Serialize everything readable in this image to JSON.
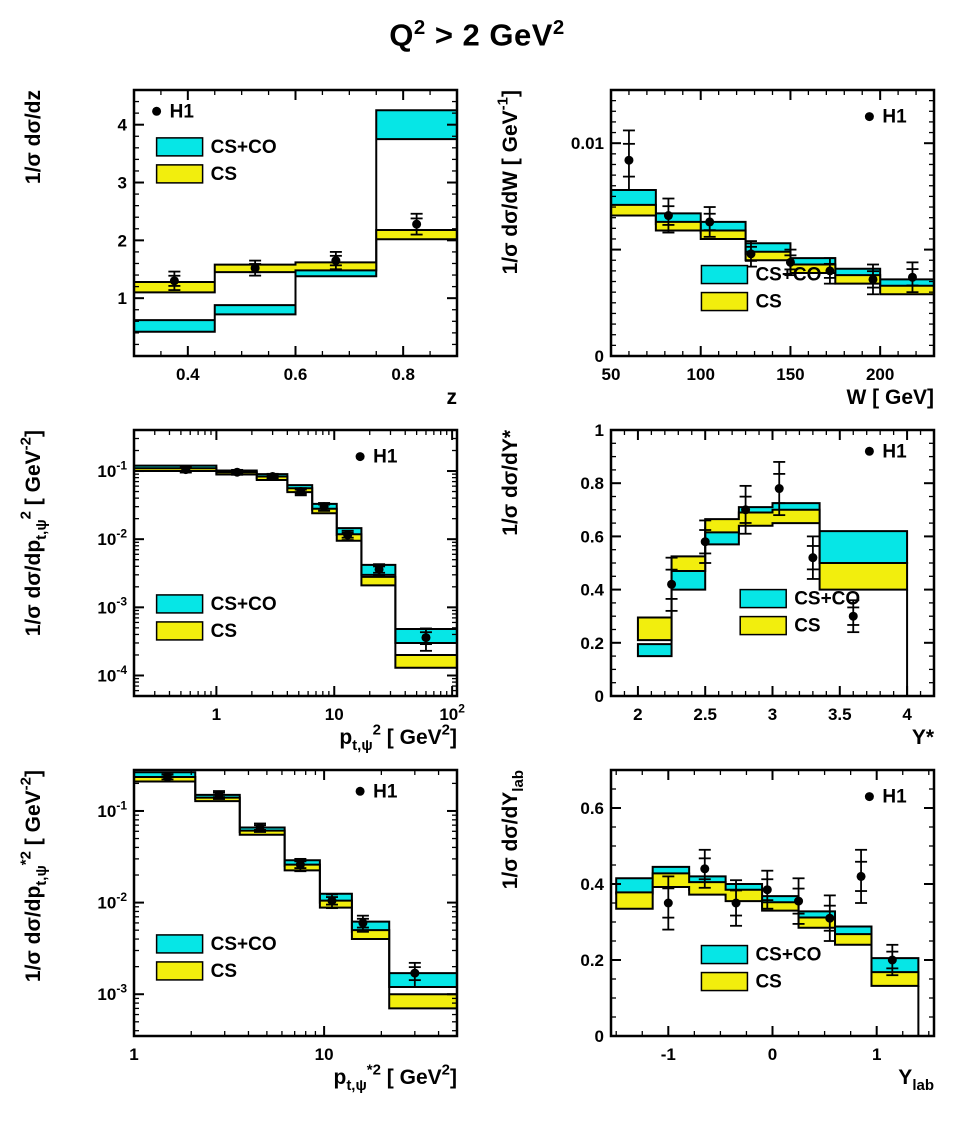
{
  "figure_title": "Q^{2} > 2 GeV^{2}",
  "colors": {
    "cs_co": "#06e6e6",
    "cs": "#f2ee0d",
    "ink": "#000000",
    "background": "#ffffff"
  },
  "legend_labels": {
    "data": "H1",
    "cs_co": "CS+CO",
    "cs": "CS"
  },
  "chart_data": [
    {
      "id": "z",
      "type": "histogram-bands+points",
      "xaxis": {
        "title": "z",
        "scale": "linear",
        "min": 0.3,
        "max": 0.9,
        "minor_step": 0.05,
        "ticks": [
          {
            "v": 0.4,
            "label": "0.4"
          },
          {
            "v": 0.6,
            "label": "0.6"
          },
          {
            "v": 0.8,
            "label": "0.8"
          }
        ]
      },
      "yaxis": {
        "title": "1/σ dσ/dz",
        "scale": "linear",
        "min": 0,
        "max": 4.6,
        "minor_step": 0.2,
        "ticks": [
          {
            "v": 1,
            "label": "1"
          },
          {
            "v": 2,
            "label": "2"
          },
          {
            "v": 3,
            "label": "3"
          },
          {
            "v": 4,
            "label": "4"
          }
        ]
      },
      "bins": [
        0.3,
        0.45,
        0.6,
        0.75,
        0.9
      ],
      "bands": {
        "cs_co": {
          "lo": [
            0.42,
            0.72,
            1.38,
            3.75
          ],
          "hi": [
            0.62,
            0.88,
            1.6,
            4.25
          ]
        },
        "cs": {
          "lo": [
            1.1,
            1.45,
            1.48,
            2.02
          ],
          "hi": [
            1.28,
            1.58,
            1.62,
            2.18
          ]
        }
      },
      "points": {
        "x": [
          0.375,
          0.525,
          0.675,
          0.825
        ],
        "y": [
          1.3,
          1.52,
          1.65,
          2.28
        ],
        "yerr": [
          0.16,
          0.13,
          0.15,
          0.18
        ]
      },
      "legend": {
        "h1": [
          0.07,
          0.08
        ],
        "bands": [
          0.07,
          0.18
        ]
      },
      "right_drop": false
    },
    {
      "id": "w",
      "type": "histogram-bands+points",
      "xaxis": {
        "title": "W [ GeV]",
        "scale": "linear",
        "min": 50,
        "max": 230,
        "minor_step": 10,
        "ticks": [
          {
            "v": 50,
            "label": "50"
          },
          {
            "v": 100,
            "label": "100"
          },
          {
            "v": 150,
            "label": "150"
          },
          {
            "v": 200,
            "label": "200"
          }
        ]
      },
      "yaxis": {
        "title": "1/σ dσ/dW [ GeV^{-1}]",
        "scale": "linear",
        "min": 0,
        "max": 0.0125,
        "minor_step": 0.0005,
        "ticks": [
          {
            "v": 0,
            "label": "0"
          },
          {
            "v": 0.005,
            "label": ""
          },
          {
            "v": 0.01,
            "label": "0.01"
          }
        ]
      },
      "bins": [
        50,
        75,
        100,
        125,
        150,
        175,
        200,
        230
      ],
      "bands": {
        "cs_co": {
          "lo": [
            0.007,
            0.0062,
            0.0058,
            0.0048,
            0.0042,
            0.0037,
            0.0032
          ],
          "hi": [
            0.0078,
            0.0067,
            0.0063,
            0.0053,
            0.0046,
            0.0041,
            0.0036
          ]
        },
        "cs": {
          "lo": [
            0.0066,
            0.0059,
            0.0055,
            0.0045,
            0.0039,
            0.0034,
            0.0029
          ],
          "hi": [
            0.0071,
            0.0063,
            0.0059,
            0.0049,
            0.0043,
            0.0038,
            0.0033
          ]
        }
      },
      "points": {
        "x": [
          60,
          82,
          105,
          128,
          150,
          172,
          196,
          218
        ],
        "y": [
          0.0092,
          0.0066,
          0.0063,
          0.0048,
          0.0044,
          0.004,
          0.0036,
          0.0037
        ],
        "yerr": [
          0.0014,
          0.0008,
          0.0007,
          0.0006,
          0.0006,
          0.0006,
          0.0007,
          0.0007
        ]
      },
      "legend": {
        "h1": [
          0.8,
          0.1
        ],
        "bands": [
          0.28,
          0.66
        ]
      },
      "right_drop": false
    },
    {
      "id": "pt2",
      "type": "histogram-bands+points",
      "xaxis": {
        "title": "p_{t,ψ}^{2} [ GeV^{2}]",
        "scale": "log",
        "min": 0.2,
        "max": 110,
        "ticks": [
          {
            "v": 1,
            "label": "1"
          },
          {
            "v": 10,
            "label": "10"
          },
          {
            "v": 100,
            "label": "10^{2}"
          }
        ]
      },
      "yaxis": {
        "title": "1/σ dσ/dp_{t,ψ}^{2} [ GeV^{-2}]",
        "scale": "log",
        "min": 5e-05,
        "max": 0.4,
        "ticks": [
          {
            "v": 0.0001,
            "label": "10^{-4}"
          },
          {
            "v": 0.001,
            "label": "10^{-3}"
          },
          {
            "v": 0.01,
            "label": "10^{-2}"
          },
          {
            "v": 0.1,
            "label": "10^{-1}"
          }
        ]
      },
      "bins": [
        0.2,
        1,
        2.2,
        4,
        6.5,
        10.5,
        17,
        33,
        110
      ],
      "bands": {
        "cs_co": {
          "lo": [
            0.1,
            0.092,
            0.078,
            0.052,
            0.027,
            0.0115,
            0.003,
            0.0003
          ],
          "hi": [
            0.12,
            0.102,
            0.09,
            0.062,
            0.033,
            0.0145,
            0.0042,
            0.00048
          ]
        },
        "cs": {
          "lo": [
            0.1,
            0.089,
            0.074,
            0.049,
            0.024,
            0.0095,
            0.0021,
            0.00013
          ],
          "hi": [
            0.11,
            0.096,
            0.083,
            0.056,
            0.028,
            0.0118,
            0.0028,
            0.0002
          ]
        }
      },
      "points": {
        "x": [
          0.55,
          1.5,
          3.0,
          5.2,
          8.2,
          13,
          24,
          60
        ],
        "y": [
          0.105,
          0.096,
          0.083,
          0.05,
          0.03,
          0.0115,
          0.0036,
          0.00036
        ],
        "yerr": [
          0.01,
          0.008,
          0.008,
          0.006,
          0.004,
          0.0018,
          0.0007,
          0.00013
        ]
      },
      "legend": {
        "h1": [
          0.7,
          0.1
        ],
        "bands": [
          0.07,
          0.62
        ]
      },
      "right_drop": false
    },
    {
      "id": "ystar",
      "type": "histogram-bands+points",
      "xaxis": {
        "title": "Y*",
        "scale": "linear",
        "min": 1.8,
        "max": 4.2,
        "minor_step": 0.1,
        "ticks": [
          {
            "v": 2,
            "label": "2"
          },
          {
            "v": 2.5,
            "label": "2.5"
          },
          {
            "v": 3,
            "label": "3"
          },
          {
            "v": 3.5,
            "label": "3.5"
          },
          {
            "v": 4,
            "label": "4"
          }
        ]
      },
      "yaxis": {
        "title": "1/σ dσ/dY*",
        "scale": "linear",
        "min": 0,
        "max": 1.0,
        "minor_step": 0.05,
        "ticks": [
          {
            "v": 0,
            "label": "0"
          },
          {
            "v": 0.2,
            "label": "0.2"
          },
          {
            "v": 0.4,
            "label": "0.4"
          },
          {
            "v": 0.6,
            "label": "0.6"
          },
          {
            "v": 0.8,
            "label": "0.8"
          },
          {
            "v": 1,
            "label": "1"
          }
        ]
      },
      "bins": [
        2.0,
        2.25,
        2.5,
        2.75,
        3.0,
        3.35,
        4.0
      ],
      "bands": {
        "cs_co": {
          "lo": [
            0.15,
            0.4,
            0.57,
            0.66,
            0.68,
            0.5
          ],
          "hi": [
            0.195,
            0.47,
            0.63,
            0.71,
            0.725,
            0.62
          ]
        },
        "cs": {
          "lo": [
            0.21,
            0.47,
            0.615,
            0.64,
            0.65,
            0.4
          ],
          "hi": [
            0.295,
            0.525,
            0.665,
            0.69,
            0.7,
            0.5
          ]
        }
      },
      "points": {
        "x": [
          2.25,
          2.5,
          2.8,
          3.05,
          3.3,
          3.6
        ],
        "y": [
          0.42,
          0.58,
          0.7,
          0.78,
          0.52,
          0.3
        ],
        "yerr": [
          0.1,
          0.08,
          0.09,
          0.1,
          0.08,
          0.06
        ]
      },
      "legend": {
        "h1": [
          0.8,
          0.08
        ],
        "bands": [
          0.4,
          0.6
        ]
      },
      "right_drop": true
    },
    {
      "id": "pt2star",
      "type": "histogram-bands+points",
      "xaxis": {
        "title": "p_{t,ψ}^{*2} [ GeV^{2}]",
        "scale": "log",
        "min": 1,
        "max": 50,
        "ticks": [
          {
            "v": 1,
            "label": "1"
          },
          {
            "v": 10,
            "label": "10"
          }
        ]
      },
      "yaxis": {
        "title": "1/σ dσ/dp_{t,ψ}^{*2} [ GeV^{-2}]",
        "scale": "log",
        "min": 0.00035,
        "max": 0.28,
        "ticks": [
          {
            "v": 0.001,
            "label": "10^{-3}"
          },
          {
            "v": 0.01,
            "label": "10^{-2}"
          },
          {
            "v": 0.1,
            "label": "10^{-1}"
          }
        ]
      },
      "bins": [
        1,
        2.1,
        3.6,
        6.2,
        9.5,
        14,
        22,
        50
      ],
      "bands": {
        "cs_co": {
          "lo": [
            0.225,
            0.135,
            0.059,
            0.025,
            0.01,
            0.0048,
            0.0012
          ],
          "hi": [
            0.265,
            0.15,
            0.066,
            0.029,
            0.0125,
            0.0062,
            0.0017
          ]
        },
        "cs": {
          "lo": [
            0.21,
            0.128,
            0.055,
            0.0225,
            0.0088,
            0.004,
            0.0007
          ],
          "hi": [
            0.235,
            0.14,
            0.061,
            0.026,
            0.0105,
            0.005,
            0.001
          ]
        }
      },
      "points": {
        "x": [
          1.5,
          2.8,
          4.6,
          7.5,
          11,
          16,
          30
        ],
        "y": [
          0.235,
          0.15,
          0.066,
          0.026,
          0.0105,
          0.006,
          0.0017
        ],
        "yerr": [
          0.025,
          0.015,
          0.007,
          0.004,
          0.0018,
          0.0012,
          0.0005
        ]
      },
      "legend": {
        "h1": [
          0.7,
          0.08
        ],
        "bands": [
          0.07,
          0.62
        ]
      },
      "right_drop": false
    },
    {
      "id": "ylab",
      "type": "histogram-bands+points",
      "xaxis": {
        "title": "Y_{lab}",
        "scale": "linear",
        "min": -1.55,
        "max": 1.55,
        "minor_step": 0.25,
        "ticks": [
          {
            "v": -1,
            "label": "-1"
          },
          {
            "v": 0,
            "label": "0"
          },
          {
            "v": 1,
            "label": "1"
          }
        ]
      },
      "yaxis": {
        "title": "1/σ dσ/dY_{lab}",
        "scale": "linear",
        "min": 0,
        "max": 0.7,
        "minor_step": 0.05,
        "ticks": [
          {
            "v": 0,
            "label": "0"
          },
          {
            "v": 0.2,
            "label": "0.2"
          },
          {
            "v": 0.4,
            "label": "0.4"
          },
          {
            "v": 0.6,
            "label": "0.6"
          }
        ]
      },
      "bins": [
        -1.5,
        -1.15,
        -0.8,
        -0.45,
        -0.1,
        0.25,
        0.6,
        0.95,
        1.4
      ],
      "bands": {
        "cs_co": {
          "lo": [
            0.375,
            0.405,
            0.385,
            0.37,
            0.34,
            0.3,
            0.255,
            0.15
          ],
          "hi": [
            0.415,
            0.445,
            0.42,
            0.4,
            0.368,
            0.328,
            0.288,
            0.205
          ]
        },
        "cs": {
          "lo": [
            0.335,
            0.392,
            0.372,
            0.355,
            0.33,
            0.285,
            0.24,
            0.132
          ],
          "hi": [
            0.378,
            0.428,
            0.405,
            0.385,
            0.352,
            0.312,
            0.268,
            0.168
          ]
        }
      },
      "points": {
        "x": [
          -1.0,
          -0.65,
          -0.35,
          -0.05,
          0.25,
          0.55,
          0.85,
          1.15
        ],
        "y": [
          0.35,
          0.44,
          0.35,
          0.385,
          0.355,
          0.31,
          0.42,
          0.2
        ],
        "yerr": [
          0.07,
          0.05,
          0.06,
          0.05,
          0.06,
          0.06,
          0.07,
          0.04
        ]
      },
      "legend": {
        "h1": [
          0.8,
          0.1
        ],
        "bands": [
          0.28,
          0.66
        ]
      },
      "right_drop": true
    }
  ]
}
